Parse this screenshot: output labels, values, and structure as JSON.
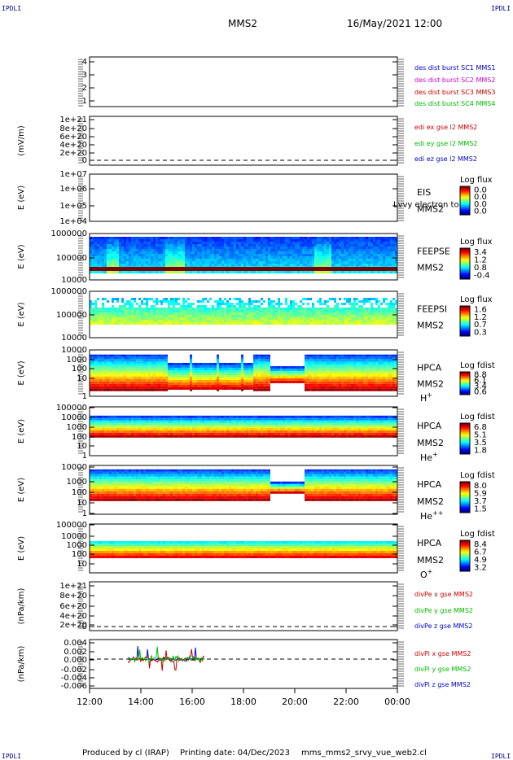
{
  "page": {
    "corner_marks": [
      "IPDLI",
      "IPDLI",
      "IPDLI",
      "IPDLI"
    ],
    "title": "MMS2",
    "date": "16/May/2021 12:00",
    "footer_producer": "Produced by cl (IRAP)",
    "footer_printing": "Printing date: 04/Dec/2023",
    "footer_file": "mms_mms2_srvy_vue_web2.cl"
  },
  "colors": {
    "blue": "#0000cc",
    "magenta": "#cc00cc",
    "red": "#cc0000",
    "green": "#00bb00"
  },
  "chart_data": [
    {
      "type": "line",
      "ylim": [
        0.5,
        4.5
      ],
      "yticks": [
        "4",
        "3",
        "2",
        "1"
      ],
      "legend": [
        {
          "text": "des dist burst SC1 MMS1",
          "color": "#0000cc"
        },
        {
          "text": "des dist burst SC2 MMS2",
          "color": "#cc00cc"
        },
        {
          "text": "des dist burst SC3 MMS3",
          "color": "#cc0000"
        },
        {
          "text": "des dist burst SC4 MMS4",
          "color": "#00bb00"
        }
      ]
    },
    {
      "type": "line",
      "ylabel": "(mV/m)",
      "yticks": [
        "1e+21",
        "8e+20",
        "6e+20",
        "4e+20",
        "2e+20",
        "0"
      ],
      "legend": [
        {
          "text": "edi ex gse l2 MMS2",
          "color": "#cc0000"
        },
        {
          "text": "edi ey gse l2 MMS2",
          "color": "#00bb00"
        },
        {
          "text": "edi ez gse l2 MMS2",
          "color": "#0000cc"
        }
      ]
    },
    {
      "type": "heatmap",
      "ylabel": "E (eV)",
      "yticks": [
        "1e+07",
        "1e+06",
        "1e+05",
        "1e+04"
      ],
      "instrument": "EIS",
      "spacecraft": "MMS2",
      "species": "",
      "cbar_title": "Log flux",
      "cbar_ticks": [
        "0.0",
        "0.0",
        "0.0",
        "0.0"
      ],
      "note": "Lvvy electron to"
    },
    {
      "type": "heatmap",
      "ylabel": "E (eV)",
      "yticks": [
        "1000000",
        "100000",
        "10000"
      ],
      "instrument": "FEEPSE",
      "spacecraft": "MMS2",
      "species": "",
      "cbar_title": "Log flux",
      "cbar_ticks": [
        "3.4",
        "1.2",
        "0.8",
        "-0.4"
      ]
    },
    {
      "type": "heatmap",
      "ylabel": "E (eV)",
      "yticks": [
        "1000000",
        "100000",
        "10000"
      ],
      "instrument": "FEEPSI",
      "spacecraft": "MMS2",
      "species": "",
      "cbar_title": "Log flux",
      "cbar_ticks": [
        "1.6",
        "1.2",
        "0.7",
        "0.3"
      ]
    },
    {
      "type": "heatmap",
      "ylabel": "E (eV)",
      "yticks": [
        "10000",
        "1000",
        "100",
        "10",
        "1"
      ],
      "instrument": "HPCA",
      "spacecraft": "MMS2",
      "species": "H",
      "species_charge": "+",
      "cbar_title": "Log fdist",
      "cbar_ticks": [
        "8.8",
        "6.1",
        "3.4",
        "0.6"
      ]
    },
    {
      "type": "heatmap",
      "ylabel": "E (eV)",
      "yticks": [
        "100000",
        "10000",
        "1000",
        "100",
        "10",
        "1"
      ],
      "instrument": "HPCA",
      "spacecraft": "MMS2",
      "species": "He",
      "species_charge": "+",
      "cbar_title": "Log fdist",
      "cbar_ticks": [
        "6.8",
        "5.1",
        "3.5",
        "1.8"
      ]
    },
    {
      "type": "heatmap",
      "ylabel": "E (eV)",
      "yticks": [
        "10000",
        "1000",
        "100",
        "10",
        "1"
      ],
      "instrument": "HPCA",
      "spacecraft": "MMS2",
      "species": "He",
      "species_charge": "++",
      "cbar_title": "Log fdist",
      "cbar_ticks": [
        "8.0",
        "5.9",
        "3.7",
        "1.5"
      ]
    },
    {
      "type": "heatmap",
      "ylabel": "E (eV)",
      "yticks": [
        "100000",
        "10000",
        "1000",
        "100",
        "10"
      ],
      "instrument": "HPCA",
      "spacecraft": "MMS2",
      "species": "O",
      "species_charge": "+",
      "cbar_title": "Log fdist",
      "cbar_ticks": [
        "8.4",
        "6.7",
        "4.9",
        "3.2"
      ]
    },
    {
      "type": "line",
      "ylabel": "(nPa/km)",
      "yticks": [
        "1e+21",
        "8e+20",
        "6e+20",
        "4e+20",
        "2e+20",
        "0"
      ],
      "legend": [
        {
          "text": "divPe x gse MMS2",
          "color": "#cc0000"
        },
        {
          "text": "divPe y gse MMS2",
          "color": "#00bb00"
        },
        {
          "text": "divPe z gse MMS2",
          "color": "#0000cc"
        }
      ]
    },
    {
      "type": "line",
      "ylabel": "(nPa/km)",
      "yticks": [
        "0.004",
        "0.002",
        "0.000",
        "-0.002",
        "-0.004",
        "-0.006"
      ],
      "legend": [
        {
          "text": "divPi x gse MMS2",
          "color": "#cc0000"
        },
        {
          "text": "divPi y gse MMS2",
          "color": "#00bb00"
        },
        {
          "text": "divPi z gse MMS2",
          "color": "#0000cc"
        }
      ]
    }
  ],
  "xaxis": {
    "start_hour": 12,
    "end_hour": 24,
    "ticks": [
      "12:00",
      "14:00",
      "16:00",
      "18:00",
      "20:00",
      "22:00",
      "00:00"
    ]
  }
}
